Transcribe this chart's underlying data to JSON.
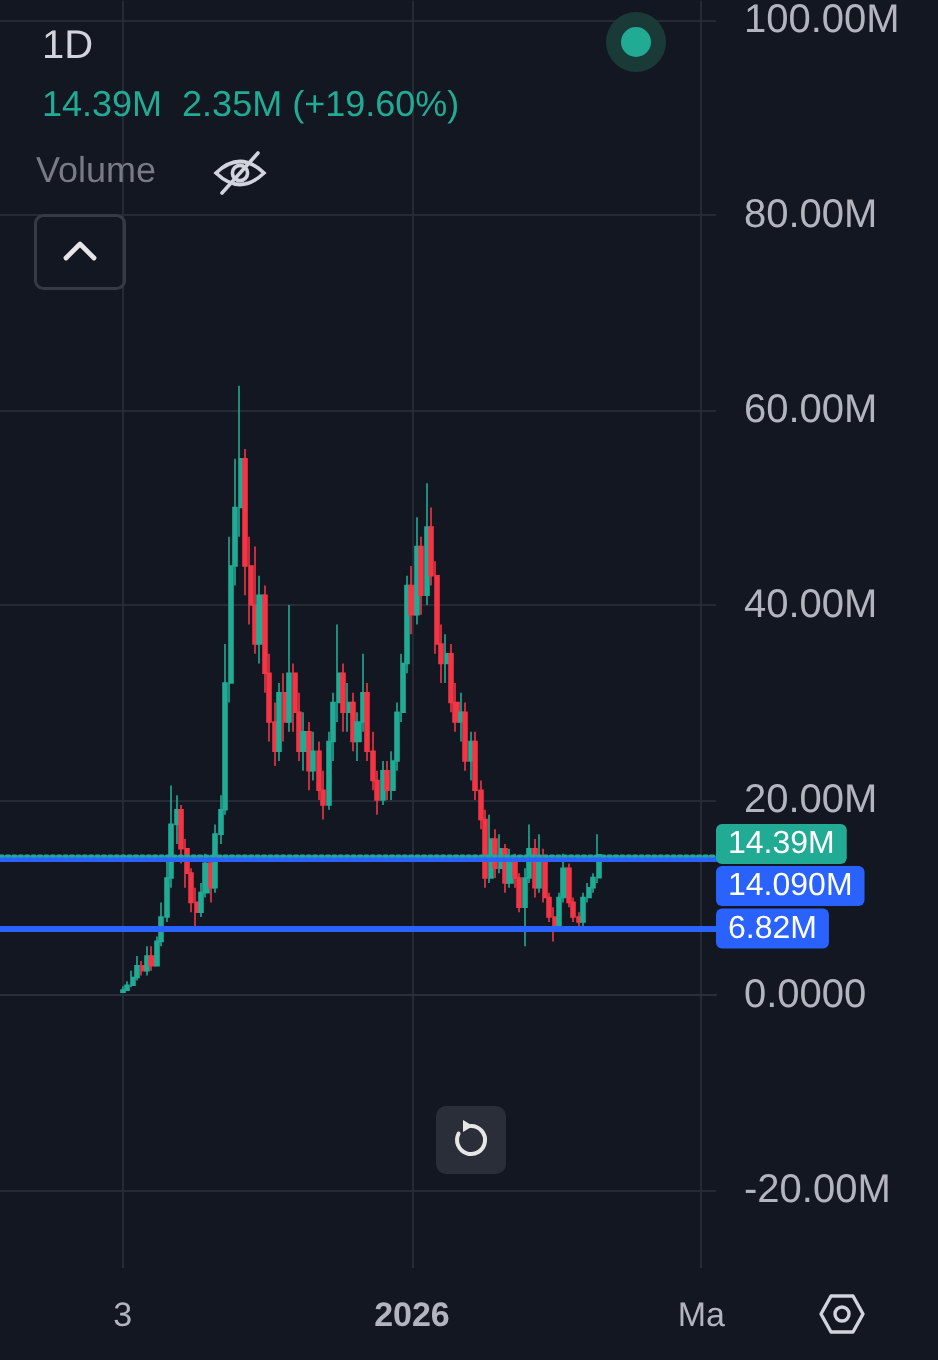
{
  "chart_data": {
    "type": "candlestick",
    "title": "1D",
    "subtitle": "14.39M  2.35M (+19.60%)",
    "annotations": [
      "Volume"
    ],
    "x": [
      "2025-11-03",
      "2025-11-04",
      "2025-11-05",
      "2025-11-06",
      "2025-11-07",
      "2025-11-08",
      "2025-11-09",
      "2025-11-10",
      "2025-11-11",
      "2025-11-12",
      "2025-11-13",
      "2025-11-14",
      "2025-11-15",
      "2025-11-16",
      "2025-11-17",
      "2025-11-18",
      "2025-11-19",
      "2025-11-20",
      "2025-11-21",
      "2025-11-22",
      "2025-11-23",
      "2025-11-24",
      "2025-11-25",
      "2025-11-26",
      "2025-11-27",
      "2025-11-28",
      "2025-11-29",
      "2025-11-30",
      "2025-12-01",
      "2025-12-02",
      "2025-12-03",
      "2025-12-04",
      "2025-12-05",
      "2025-12-06",
      "2025-12-07",
      "2025-12-08",
      "2025-12-09",
      "2025-12-10",
      "2025-12-11",
      "2025-12-12",
      "2025-12-13",
      "2025-12-14",
      "2025-12-15",
      "2025-12-16",
      "2025-12-17",
      "2025-12-18",
      "2025-12-19",
      "2025-12-20",
      "2025-12-21",
      "2025-12-22",
      "2025-12-23",
      "2025-12-24",
      "2025-12-25",
      "2025-12-26",
      "2025-12-27",
      "2025-12-28",
      "2025-12-29",
      "2025-12-30",
      "2025-12-31",
      "2026-01-01",
      "2026-01-02",
      "2026-01-03",
      "2026-01-04",
      "2026-01-05",
      "2026-01-06",
      "2026-01-07",
      "2026-01-08",
      "2026-01-09",
      "2026-01-10",
      "2026-01-11",
      "2026-01-12",
      "2026-01-13",
      "2026-01-14",
      "2026-01-15",
      "2026-01-16",
      "2026-01-17",
      "2026-01-18",
      "2026-01-19",
      "2026-01-20",
      "2026-01-21",
      "2026-01-22",
      "2026-01-23",
      "2026-01-24",
      "2026-01-25",
      "2026-01-26",
      "2026-01-27",
      "2026-01-28",
      "2026-01-29",
      "2026-01-30",
      "2026-01-31",
      "2026-02-01",
      "2026-02-02",
      "2026-02-03",
      "2026-02-04",
      "2026-02-05",
      "2026-02-06",
      "2026-02-07",
      "2026-02-08"
    ],
    "ohlc": [
      [
        0.3,
        0.9,
        0.2,
        0.5
      ],
      [
        0.5,
        1.4,
        0.4,
        1
      ],
      [
        1,
        2.5,
        0.8,
        1.8
      ],
      [
        1.8,
        4,
        1.5,
        3
      ],
      [
        3,
        3.5,
        2,
        2.5
      ],
      [
        2.5,
        5,
        2,
        4
      ],
      [
        4,
        5,
        2.5,
        3
      ],
      [
        3,
        6,
        3,
        5.5
      ],
      [
        5.5,
        9.5,
        5,
        8
      ],
      [
        8,
        14,
        7.5,
        12
      ],
      [
        12,
        21.5,
        11,
        17.5
      ],
      [
        17.5,
        20.5,
        15.5,
        19
      ],
      [
        19,
        19.5,
        13.5,
        15
      ],
      [
        15,
        16,
        11,
        12.5
      ],
      [
        12.5,
        13,
        8.5,
        9.5
      ],
      [
        9.5,
        11,
        7,
        8.5
      ],
      [
        8.5,
        11.5,
        8,
        10.5
      ],
      [
        10.5,
        14.5,
        10,
        13.5
      ],
      [
        13.5,
        14,
        9.5,
        11
      ],
      [
        11,
        17.5,
        10.5,
        16.5
      ],
      [
        16.5,
        20.5,
        15.5,
        19
      ],
      [
        19,
        36,
        18.5,
        32
      ],
      [
        32,
        47,
        30,
        44
      ],
      [
        44,
        55,
        42,
        50
      ],
      [
        50,
        62.5,
        47,
        55
      ],
      [
        55,
        56,
        41,
        44
      ],
      [
        44,
        47,
        38,
        40
      ],
      [
        40,
        46,
        35,
        36
      ],
      [
        36,
        43,
        34,
        41
      ],
      [
        41,
        42,
        31,
        33
      ],
      [
        33,
        35,
        26,
        28
      ],
      [
        28,
        30,
        23.5,
        25
      ],
      [
        25,
        32,
        24,
        31
      ],
      [
        31,
        33,
        26,
        28
      ],
      [
        28,
        40,
        27,
        33
      ],
      [
        33,
        34,
        27,
        29
      ],
      [
        29,
        31,
        24,
        25
      ],
      [
        25,
        29,
        23,
        27
      ],
      [
        27,
        28,
        21,
        23
      ],
      [
        23,
        27,
        22,
        25
      ],
      [
        25,
        26,
        20,
        21
      ],
      [
        21,
        23,
        18,
        19.5
      ],
      [
        19.5,
        27,
        19,
        26
      ],
      [
        26,
        31,
        24,
        30
      ],
      [
        30,
        38,
        28,
        33
      ],
      [
        33,
        34,
        27,
        29
      ],
      [
        29,
        32,
        27,
        30
      ],
      [
        30,
        31,
        25,
        26
      ],
      [
        26,
        29,
        24,
        28
      ],
      [
        28,
        35,
        27,
        31
      ],
      [
        31,
        32,
        24,
        25
      ],
      [
        25,
        27,
        21,
        22
      ],
      [
        22,
        23,
        18.5,
        20
      ],
      [
        20,
        24,
        19.5,
        23
      ],
      [
        23,
        24,
        20,
        21
      ],
      [
        21,
        25,
        20,
        24
      ],
      [
        24,
        30,
        23,
        29
      ],
      [
        29,
        35,
        28,
        34
      ],
      [
        34,
        43,
        33,
        42
      ],
      [
        42,
        44,
        37,
        39
      ],
      [
        39,
        49,
        38,
        46
      ],
      [
        46,
        47,
        39,
        41
      ],
      [
        41,
        52.5,
        40,
        48
      ],
      [
        48,
        50,
        42,
        43
      ],
      [
        43,
        44.5,
        35,
        36
      ],
      [
        36,
        38,
        32,
        34
      ],
      [
        34,
        37,
        32,
        35
      ],
      [
        35,
        36,
        29,
        30
      ],
      [
        30,
        32,
        27,
        28
      ],
      [
        28,
        31,
        26,
        29
      ],
      [
        29,
        30,
        23,
        24
      ],
      [
        24,
        27,
        22,
        26
      ],
      [
        26,
        27,
        20,
        21
      ],
      [
        21,
        22,
        17,
        18
      ],
      [
        18,
        19,
        11,
        12
      ],
      [
        12,
        18.5,
        11.5,
        16
      ],
      [
        16,
        17,
        12,
        13
      ],
      [
        13,
        16.5,
        12.5,
        15
      ],
      [
        15,
        15.5,
        10.5,
        11.5
      ],
      [
        11.5,
        15,
        11,
        14
      ],
      [
        14,
        14.5,
        11,
        12
      ],
      [
        12,
        12.5,
        8.5,
        9
      ],
      [
        9,
        13,
        5,
        12
      ],
      [
        12,
        17.5,
        11.5,
        15
      ],
      [
        15,
        16,
        10,
        11
      ],
      [
        11,
        16.5,
        10.5,
        14
      ],
      [
        14,
        15,
        9.5,
        10
      ],
      [
        10,
        10.5,
        7.5,
        8
      ],
      [
        8,
        9,
        5.5,
        7
      ],
      [
        7,
        10.5,
        6.5,
        10
      ],
      [
        10,
        14.5,
        9.5,
        13
      ],
      [
        13,
        13.5,
        9,
        9.5
      ],
      [
        9.5,
        10,
        7.5,
        8
      ],
      [
        8,
        8.5,
        7,
        7.5
      ],
      [
        7.5,
        10.5,
        7,
        10
      ],
      [
        10,
        11.5,
        9.5,
        11
      ],
      [
        11,
        12.5,
        10.5,
        12.04
      ],
      [
        12.04,
        16.5,
        11.5,
        14.39
      ]
    ],
    "colors": [
      "#22ab94",
      "#22ab94",
      "#22ab94",
      "#22ab94",
      "#f23645",
      "#22ab94",
      "#f23645",
      "#22ab94",
      "#22ab94",
      "#22ab94",
      "#22ab94",
      "#22ab94",
      "#f23645",
      "#f23645",
      "#f23645",
      "#f23645",
      "#22ab94",
      "#22ab94",
      "#f23645",
      "#22ab94",
      "#22ab94",
      "#22ab94",
      "#22ab94",
      "#22ab94",
      "#22ab94",
      "#f23645",
      "#f23645",
      "#f23645",
      "#22ab94",
      "#f23645",
      "#f23645",
      "#f23645",
      "#22ab94",
      "#f23645",
      "#22ab94",
      "#f23645",
      "#f23645",
      "#22ab94",
      "#f23645",
      "#22ab94",
      "#f23645",
      "#f23645",
      "#22ab94",
      "#22ab94",
      "#22ab94",
      "#f23645",
      "#22ab94",
      "#f23645",
      "#22ab94",
      "#22ab94",
      "#f23645",
      "#f23645",
      "#f23645",
      "#22ab94",
      "#f23645",
      "#22ab94",
      "#22ab94",
      "#22ab94",
      "#22ab94",
      "#f23645",
      "#22ab94",
      "#f23645",
      "#22ab94",
      "#f23645",
      "#f23645",
      "#f23645",
      "#22ab94",
      "#f23645",
      "#f23645",
      "#22ab94",
      "#f23645",
      "#22ab94",
      "#f23645",
      "#f23645",
      "#f23645",
      "#22ab94",
      "#f23645",
      "#22ab94",
      "#f23645",
      "#22ab94",
      "#f23645",
      "#f23645",
      "#22ab94",
      "#22ab94",
      "#f23645",
      "#22ab94",
      "#f23645",
      "#f23645",
      "#f23645",
      "#22ab94",
      "#22ab94",
      "#f23645",
      "#f23645",
      "#f23645",
      "#22ab94",
      "#22ab94",
      "#22ab94",
      "#22ab94"
    ],
    "xlim": [
      "2025-10-09",
      "2026-03-04"
    ],
    "xticks": [
      {
        "value": "2025-11-03",
        "label": "3"
      },
      {
        "value": "2026-01-01",
        "label": "2026"
      },
      {
        "value": "2026-03-01",
        "label": "Ma"
      }
    ],
    "ylim": [
      -28,
      102
    ],
    "yticks": [
      {
        "value": 100,
        "label": "100.00M"
      },
      {
        "value": 80,
        "label": "80.00M"
      },
      {
        "value": 60,
        "label": "60.00M"
      },
      {
        "value": 40,
        "label": "40.00M"
      },
      {
        "value": 20,
        "label": "20.00M"
      },
      {
        "value": 0,
        "label": "0.0000"
      },
      {
        "value": -20,
        "label": "-20.00M"
      }
    ],
    "ref_lines": [
      {
        "axis": "y",
        "value": 14.09,
        "label": "14.090M",
        "color": "#2962ff"
      },
      {
        "axis": "y",
        "value": 6.82,
        "label": "6.82M",
        "color": "#2962ff"
      },
      {
        "axis": "y",
        "value": 14.39,
        "label": "14.39M",
        "color": "#22ab94",
        "line_style": "dotted"
      }
    ],
    "grid": true
  }
}
